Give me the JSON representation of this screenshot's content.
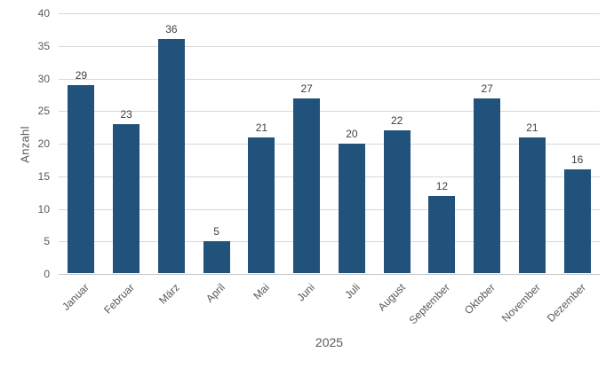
{
  "chart_data": {
    "type": "bar",
    "title": "",
    "categories": [
      "Januar",
      "Februar",
      "März",
      "April",
      "Mai",
      "Juni",
      "Juli",
      "August",
      "September",
      "Oktober",
      "November",
      "Dezember"
    ],
    "values": [
      29,
      23,
      36,
      5,
      21,
      27,
      20,
      22,
      12,
      27,
      21,
      16
    ],
    "xlabel": "2025",
    "ylabel": "Anzahl",
    "ylim": [
      0,
      40
    ],
    "yticks": [
      0,
      5,
      10,
      15,
      20,
      25,
      30,
      35,
      40
    ],
    "grid": true,
    "legend": "none",
    "data_labels": true,
    "x_label_rotation_deg": -45,
    "colors": {
      "bar": "#21527C",
      "gridline": "#D9D9D9",
      "axis_line": "#C9C9C9",
      "tick_text": "#595959",
      "data_label_text": "#404040",
      "axis_title_text": "#595959"
    }
  }
}
